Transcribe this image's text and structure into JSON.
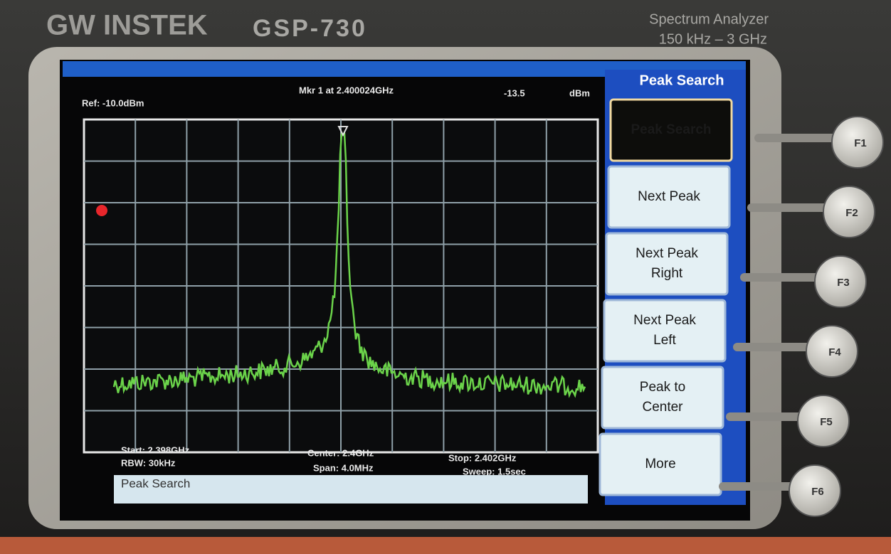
{
  "brand": {
    "logo": "GW INSTEK",
    "model": "GSP-730",
    "product": "Spectrum Analyzer",
    "range": "150 kHz – 3 GHz"
  },
  "screen": {
    "ref": "Ref: -10.0dBm",
    "marker": "Mkr 1 at 2.400024GHz",
    "level": "-13.5",
    "unit": "dBm",
    "start": "Start: 2.398GHz",
    "rbw": "RBW: 30kHz",
    "center": "Center: 2.4GHz",
    "span": "Span: 4.0MHz",
    "stop": "Stop: 2.402GHz",
    "sweep": "Sweep: 1.5sec",
    "status": "Peak Search"
  },
  "menu": {
    "title": "Peak Search",
    "softkeys": [
      [
        "Peak Search"
      ],
      [
        "Next Peak"
      ],
      [
        "Next Peak",
        "Right"
      ],
      [
        "Next Peak",
        "Left"
      ],
      [
        "Peak to",
        "Center"
      ],
      [
        "More"
      ]
    ]
  },
  "function_keys": [
    "F1",
    "F2",
    "F3",
    "F4",
    "F5",
    "F6"
  ]
}
